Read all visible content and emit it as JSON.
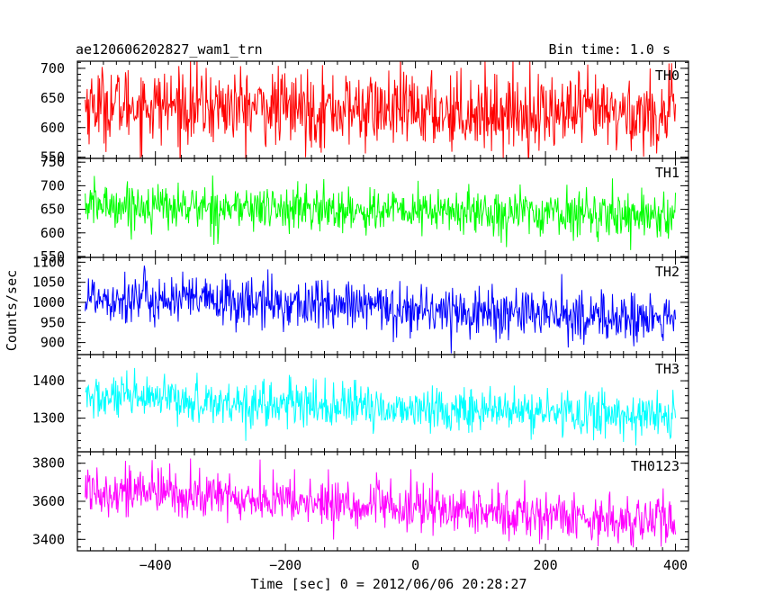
{
  "header": {
    "title": "ae120606202827_wam1_trn",
    "bin_time": "Bin time: 1.0 s"
  },
  "chart_data": {
    "type": "line",
    "title": "ae120606202827_wam1_trn",
    "subtitle": "Bin time: 1.0 s",
    "xlabel": "Time [sec] 0 = 2012/06/06 20:28:27",
    "ylabel": "Counts/sec",
    "xlim": [
      -520,
      420
    ],
    "x_ticks": [
      -400,
      -200,
      0,
      200,
      400
    ],
    "x_tick_labels": [
      "−400",
      "−200",
      "0",
      "200",
      "400"
    ],
    "x_sample_range": [
      -508,
      400
    ],
    "bin_time_s": 1.0,
    "panels": [
      {
        "name": "TH0",
        "color": "#ff0000",
        "ylim": [
          548,
          712
        ],
        "y_ticks": [
          550,
          600,
          650,
          700
        ],
        "y_tick_labels": [
          "550",
          "600",
          "650",
          "700"
        ],
        "trend": [
          [
            -508,
            640
          ],
          [
            -100,
            630
          ],
          [
            400,
            622
          ]
        ],
        "noise_sd": 32
      },
      {
        "name": "TH1",
        "color": "#00ff00",
        "ylim": [
          548,
          758
        ],
        "y_ticks": [
          550,
          600,
          650,
          700,
          750
        ],
        "y_tick_labels": [
          "550",
          "600",
          "650",
          "700",
          "750"
        ],
        "trend": [
          [
            -508,
            660
          ],
          [
            -100,
            648
          ],
          [
            400,
            638
          ]
        ],
        "noise_sd": 24
      },
      {
        "name": "TH2",
        "color": "#0000ff",
        "ylim": [
          870,
          1112
        ],
        "y_ticks": [
          900,
          950,
          1000,
          1050,
          1100
        ],
        "y_tick_labels": [
          "900",
          "950",
          "1000",
          "1050",
          "1100"
        ],
        "trend": [
          [
            -508,
            1015
          ],
          [
            -100,
            990
          ],
          [
            400,
            955
          ]
        ],
        "noise_sd": 32
      },
      {
        "name": "TH3",
        "color": "#00ffff",
        "ylim": [
          1210,
          1470
        ],
        "y_ticks": [
          1300,
          1400
        ],
        "y_tick_labels": [
          "1300",
          "1400"
        ],
        "trend": [
          [
            -508,
            1355
          ],
          [
            -100,
            1330
          ],
          [
            400,
            1305
          ]
        ],
        "noise_sd": 30
      },
      {
        "name": "TH0123",
        "color": "#ff00ff",
        "ylim": [
          3340,
          3860
        ],
        "y_ticks": [
          3400,
          3600,
          3800
        ],
        "y_tick_labels": [
          "3400",
          "3600",
          "3800"
        ],
        "trend": [
          [
            -508,
            3670
          ],
          [
            -100,
            3580
          ],
          [
            400,
            3490
          ]
        ],
        "noise_sd": 65
      }
    ],
    "grid": false,
    "legend": "none"
  }
}
